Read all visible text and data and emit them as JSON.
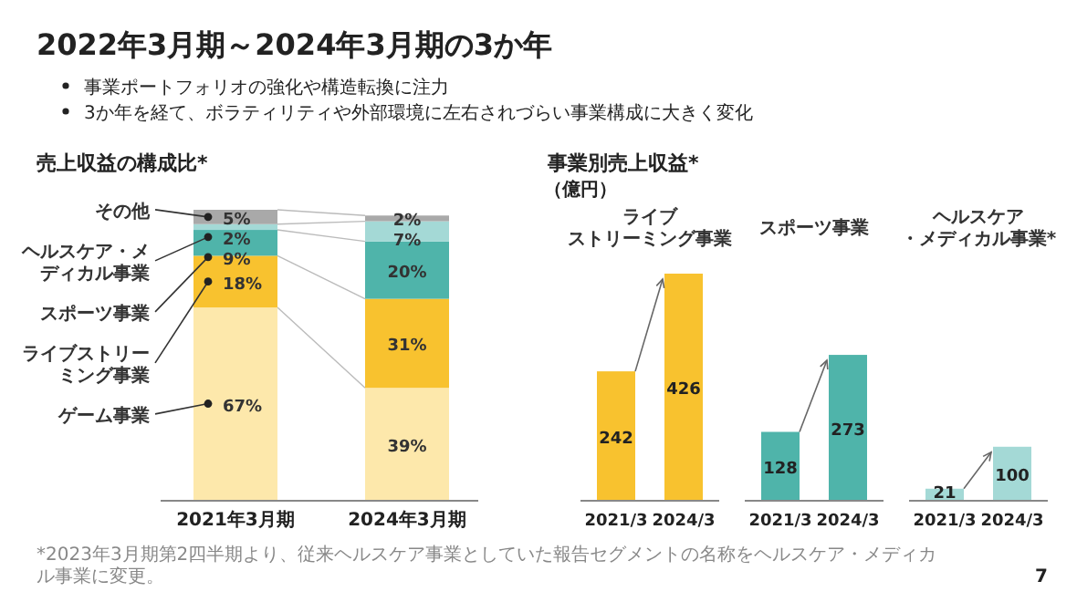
{
  "chart_data": [
    {
      "type": "other",
      "title": "2022年3月期～2024年3月期の3か年",
      "annotations": [
        "事業ポートフォリオの強化や構造転換に注力",
        "3か年を経て、ボラティリティや外部環境に左右されづらい事業構成に大きく変化",
        "*2023年3月期第2四半期より、従来ヘルスケア事業としていた報告セグメントの名称をヘルスケア・メディカル事業に変更。",
        "7"
      ]
    },
    {
      "type": "bar",
      "title": "売上収益の構成比*",
      "categories": [
        "2021年3月期",
        "2024年3月期"
      ],
      "stacked": true,
      "legend": "left",
      "series": [
        {
          "name": "ゲーム事業",
          "color": "#fde8ab",
          "values": [
            67,
            39
          ],
          "value_labels": [
            "67%",
            "39%"
          ]
        },
        {
          "name": "ライブストリーミング事業",
          "color": "#f8c22f",
          "values": [
            18,
            31
          ],
          "value_labels": [
            "18%",
            "31%"
          ]
        },
        {
          "name": "スポーツ事業",
          "color": "#4fb4aa",
          "values": [
            9,
            20
          ],
          "value_labels": [
            "9%",
            "20%"
          ]
        },
        {
          "name": "ヘルスケア・メディカル事業",
          "color": "#a4d9d6",
          "values": [
            2,
            7
          ],
          "value_labels": [
            "2%",
            "7%"
          ]
        },
        {
          "name": "その他",
          "color": "#a9a9a9",
          "values": [
            5,
            2
          ],
          "value_labels": [
            "5%",
            "2%"
          ]
        }
      ]
    },
    {
      "type": "other",
      "title": "事業別売上収益*",
      "subtitle": "（億円）"
    },
    {
      "type": "bar",
      "title": "ライブストリーミング事業",
      "categories": [
        "2021/3",
        "2024/3"
      ],
      "values": [
        242,
        426
      ],
      "color": "#f8c22f",
      "data_labels": true
    },
    {
      "type": "bar",
      "title": "スポーツ事業",
      "categories": [
        "2021/3",
        "2024/3"
      ],
      "values": [
        128,
        273
      ],
      "color": "#4fb4aa",
      "data_labels": true
    },
    {
      "type": "bar",
      "title": "ヘルスケア・メディカル事業*",
      "categories": [
        "2021/3",
        "2024/3"
      ],
      "values": [
        21,
        100
      ],
      "color": "#a4d9d6",
      "data_labels": true
    }
  ]
}
